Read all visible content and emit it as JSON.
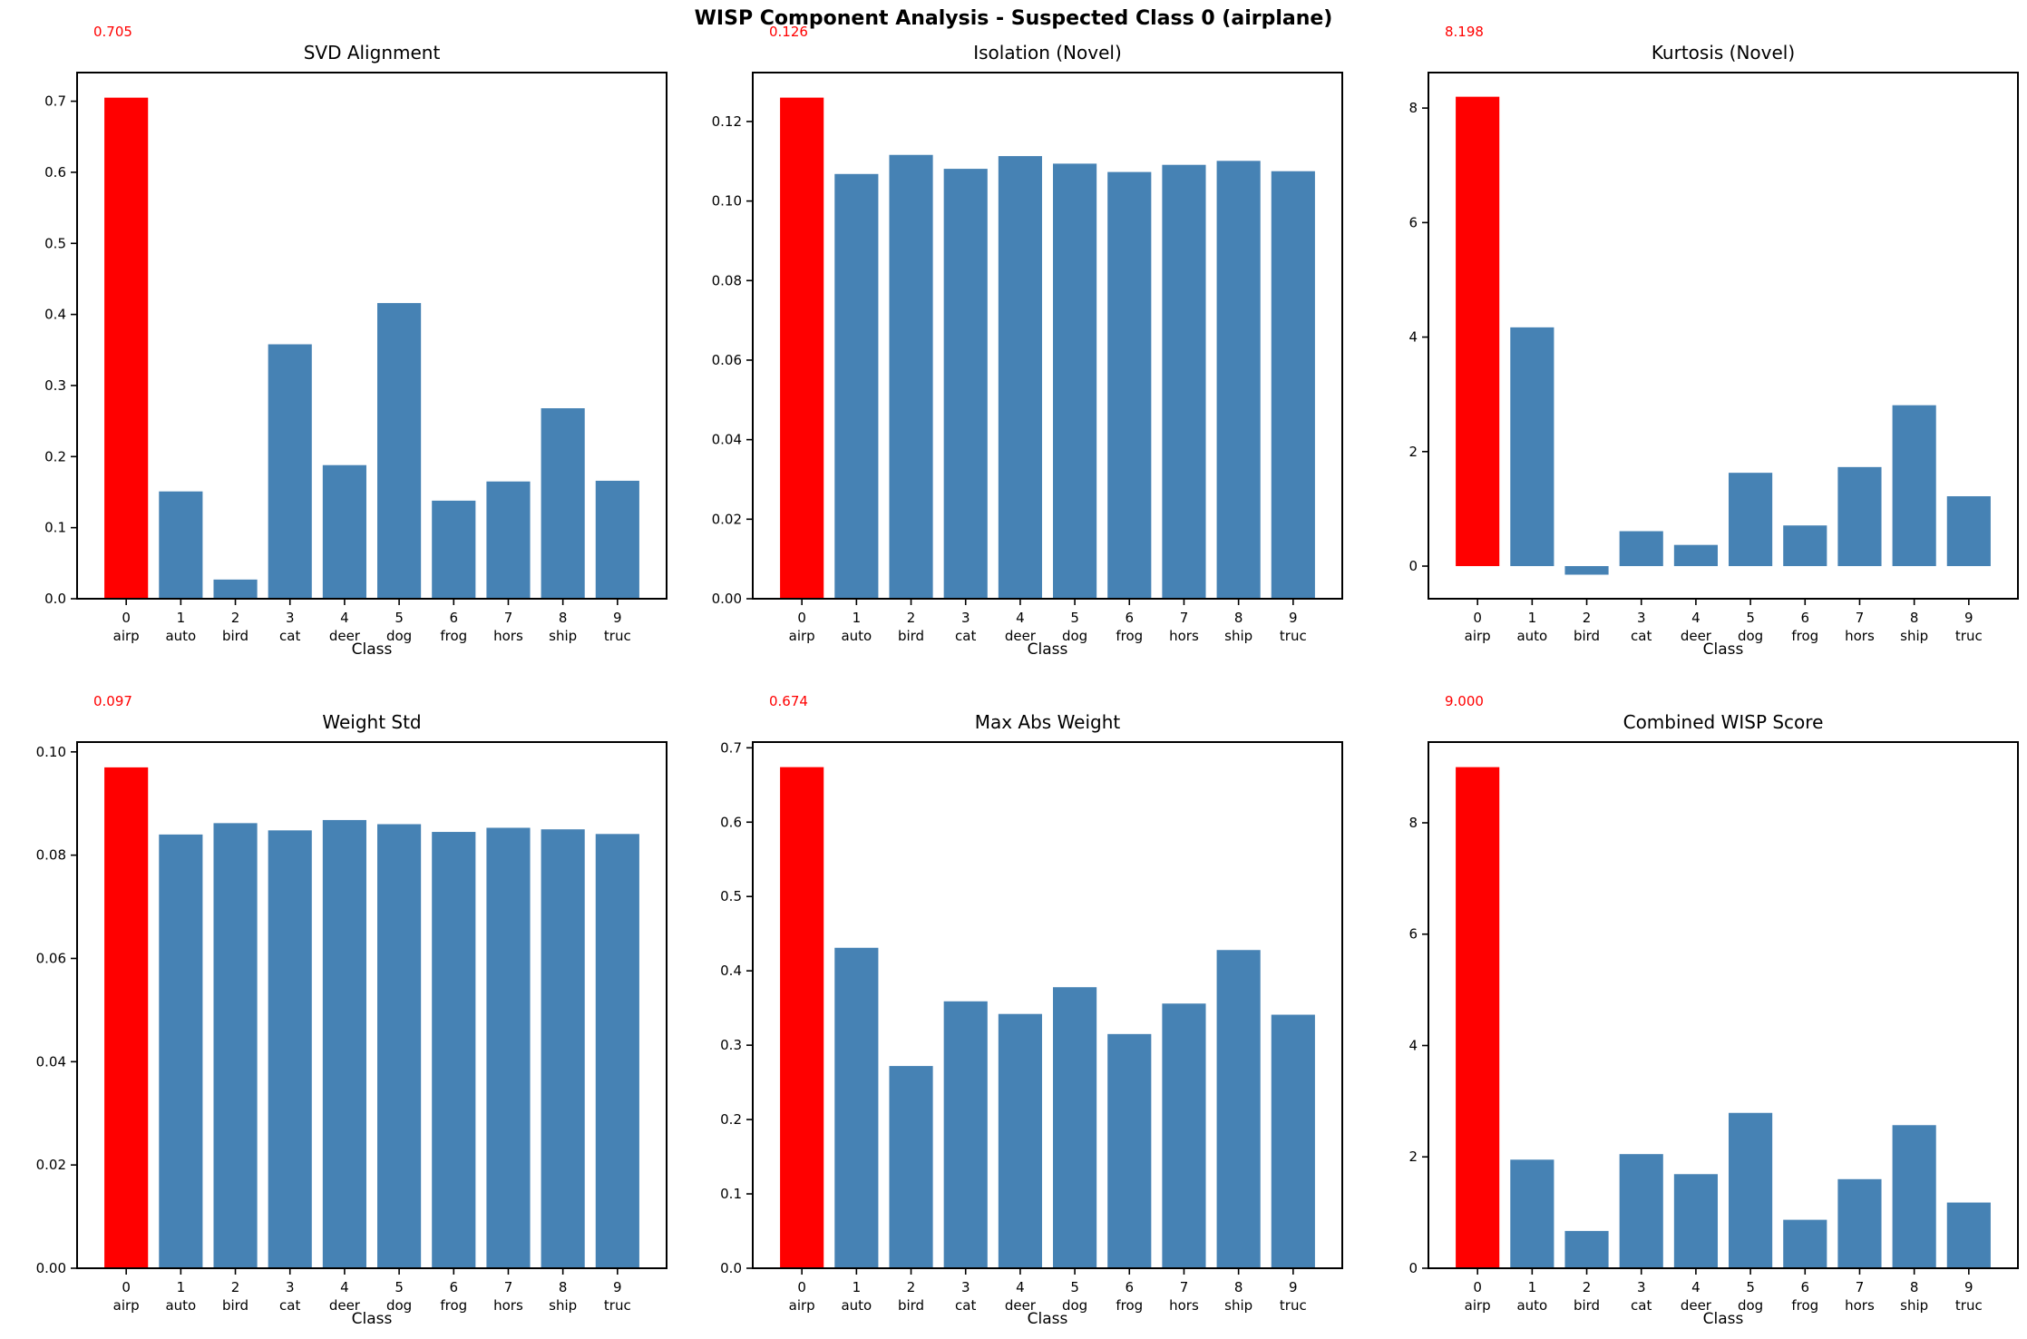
{
  "figure": {
    "title": "WISP Component Analysis - Suspected Class 0 (airplane)"
  },
  "colors": {
    "highlight_bar": "#ff0000",
    "normal_bar": "#4682b4",
    "annotation_text": "#ff0000",
    "axis_line": "#000000",
    "text": "#000000"
  },
  "classes": [
    {
      "num": "0",
      "name": "airp"
    },
    {
      "num": "1",
      "name": "auto"
    },
    {
      "num": "2",
      "name": "bird"
    },
    {
      "num": "3",
      "name": "cat"
    },
    {
      "num": "4",
      "name": "deer"
    },
    {
      "num": "5",
      "name": "dog"
    },
    {
      "num": "6",
      "name": "frog"
    },
    {
      "num": "7",
      "name": "hors"
    },
    {
      "num": "8",
      "name": "ship"
    },
    {
      "num": "9",
      "name": "truc"
    }
  ],
  "chart_data": [
    {
      "type": "bar",
      "title": "SVD Alignment",
      "annotation": "0.705",
      "xlabel": "Class",
      "categories": [
        "0 airp",
        "1 auto",
        "2 bird",
        "3 cat",
        "4 deer",
        "5 dog",
        "6 frog",
        "7 hors",
        "8 ship",
        "9 truc"
      ],
      "values": [
        0.705,
        0.151,
        0.027,
        0.358,
        0.188,
        0.416,
        0.138,
        0.165,
        0.268,
        0.166
      ],
      "highlight_index": 0,
      "ylim": [
        0,
        0.7403
      ],
      "yticks": [
        0.0,
        0.1,
        0.2,
        0.3,
        0.4,
        0.5,
        0.6,
        0.7
      ],
      "ytick_labels": [
        "0.0",
        "0.1",
        "0.2",
        "0.3",
        "0.4",
        "0.5",
        "0.6",
        "0.7"
      ],
      "grid": false,
      "legend": null
    },
    {
      "type": "bar",
      "title": "Isolation (Novel)",
      "annotation": "0.126",
      "xlabel": "Class",
      "categories": [
        "0 airp",
        "1 auto",
        "2 bird",
        "3 cat",
        "4 deer",
        "5 dog",
        "6 frog",
        "7 hors",
        "8 ship",
        "9 truc"
      ],
      "values": [
        0.126,
        0.1068,
        0.1116,
        0.1081,
        0.1113,
        0.1094,
        0.1073,
        0.1091,
        0.1101,
        0.1075
      ],
      "highlight_index": 0,
      "ylim": [
        0,
        0.1323
      ],
      "yticks": [
        0.0,
        0.02,
        0.04,
        0.06,
        0.08,
        0.1,
        0.12
      ],
      "ytick_labels": [
        "0.00",
        "0.02",
        "0.04",
        "0.06",
        "0.08",
        "0.10",
        "0.12"
      ],
      "grid": false,
      "legend": null
    },
    {
      "type": "bar",
      "title": "Kurtosis (Novel)",
      "annotation": "8.198",
      "xlabel": "Class",
      "categories": [
        "0 airp",
        "1 auto",
        "2 bird",
        "3 cat",
        "4 deer",
        "5 dog",
        "6 frog",
        "7 hors",
        "8 ship",
        "9 truc"
      ],
      "values": [
        8.198,
        4.17,
        -0.15,
        0.61,
        0.37,
        1.63,
        0.71,
        1.73,
        2.81,
        1.22
      ],
      "highlight_index": 0,
      "ylim": [
        -0.57,
        8.62
      ],
      "yticks": [
        0,
        2,
        4,
        6,
        8
      ],
      "ytick_labels": [
        "0",
        "2",
        "4",
        "6",
        "8"
      ],
      "grid": false,
      "legend": null
    },
    {
      "type": "bar",
      "title": "Weight Std",
      "annotation": "0.097",
      "xlabel": "Class",
      "categories": [
        "0 airp",
        "1 auto",
        "2 bird",
        "3 cat",
        "4 deer",
        "5 dog",
        "6 frog",
        "7 hors",
        "8 ship",
        "9 truc"
      ],
      "values": [
        0.097,
        0.084,
        0.0862,
        0.0848,
        0.0868,
        0.086,
        0.0845,
        0.0853,
        0.085,
        0.0841
      ],
      "highlight_index": 0,
      "ylim": [
        0,
        0.1019
      ],
      "yticks": [
        0.0,
        0.02,
        0.04,
        0.06,
        0.08,
        0.1
      ],
      "ytick_labels": [
        "0.00",
        "0.02",
        "0.04",
        "0.06",
        "0.08",
        "0.10"
      ],
      "grid": false,
      "legend": null
    },
    {
      "type": "bar",
      "title": "Max Abs Weight",
      "annotation": "0.674",
      "xlabel": "Class",
      "categories": [
        "0 airp",
        "1 auto",
        "2 bird",
        "3 cat",
        "4 deer",
        "5 dog",
        "6 frog",
        "7 hors",
        "8 ship",
        "9 truc"
      ],
      "values": [
        0.674,
        0.431,
        0.272,
        0.359,
        0.342,
        0.378,
        0.315,
        0.356,
        0.428,
        0.341
      ],
      "highlight_index": 0,
      "ylim": [
        0,
        0.7077
      ],
      "yticks": [
        0.0,
        0.1,
        0.2,
        0.3,
        0.4,
        0.5,
        0.6,
        0.7
      ],
      "ytick_labels": [
        "0.0",
        "0.1",
        "0.2",
        "0.3",
        "0.4",
        "0.5",
        "0.6",
        "0.7"
      ],
      "grid": false,
      "legend": null
    },
    {
      "type": "bar",
      "title": "Combined WISP Score",
      "annotation": "9.000",
      "xlabel": "Class",
      "categories": [
        "0 airp",
        "1 auto",
        "2 bird",
        "3 cat",
        "4 deer",
        "5 dog",
        "6 frog",
        "7 hors",
        "8 ship",
        "9 truc"
      ],
      "values": [
        9.0,
        1.95,
        0.67,
        2.05,
        1.69,
        2.79,
        0.87,
        1.6,
        2.57,
        1.18
      ],
      "highlight_index": 0,
      "ylim": [
        0,
        9.45
      ],
      "yticks": [
        0,
        2,
        4,
        6,
        8
      ],
      "ytick_labels": [
        "0",
        "2",
        "4",
        "6",
        "8"
      ],
      "grid": false,
      "legend": null
    }
  ]
}
